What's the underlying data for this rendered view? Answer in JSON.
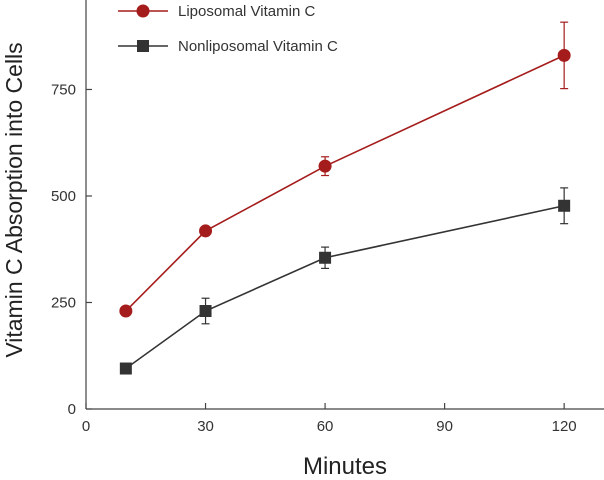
{
  "chart_data": {
    "type": "line",
    "xlabel": "Minutes",
    "ylabel": "Vitamin C Absorption into Cells",
    "xlim": [
      0,
      130
    ],
    "ylim": [
      0,
      960
    ],
    "xticks": [
      0,
      30,
      60,
      90,
      120
    ],
    "yticks": [
      0,
      250,
      500,
      750
    ],
    "grid": false,
    "legend_position": "top-left",
    "series": [
      {
        "name": "Liposomal Vitamin C",
        "marker": "circle",
        "color": "#a51c1c",
        "x": [
          10,
          30,
          60,
          120
        ],
        "y": [
          230,
          418,
          570,
          830
        ],
        "error": [
          0,
          0,
          22,
          78
        ]
      },
      {
        "name": "Nonliposomal Vitamin C",
        "marker": "square",
        "color": "#333333",
        "x": [
          10,
          30,
          60,
          120
        ],
        "y": [
          95,
          230,
          355,
          477
        ],
        "error": [
          0,
          30,
          25,
          42
        ]
      }
    ]
  }
}
